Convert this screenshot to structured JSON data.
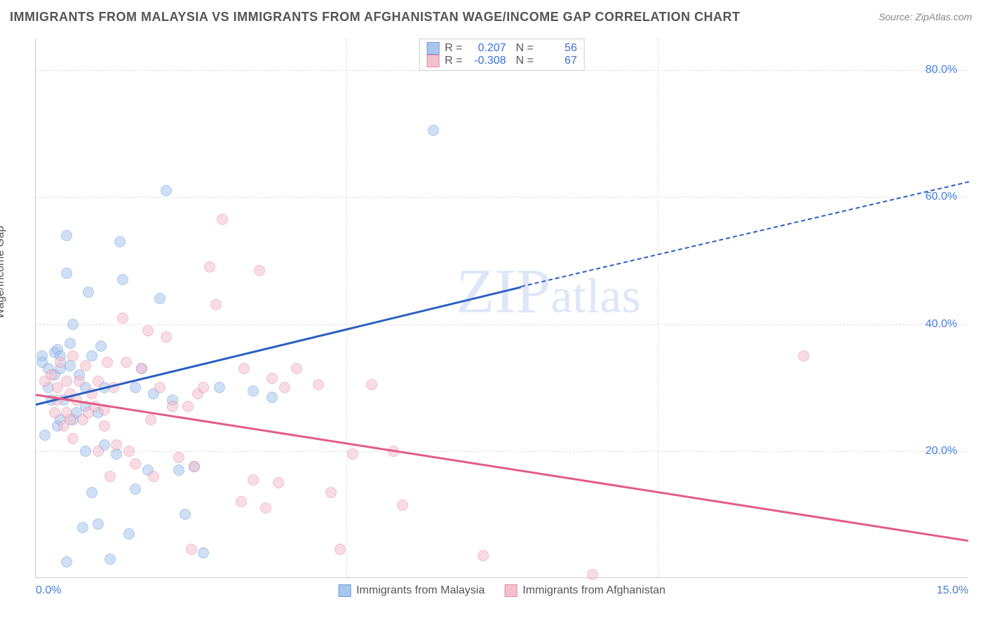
{
  "title": "IMMIGRANTS FROM MALAYSIA VS IMMIGRANTS FROM AFGHANISTAN WAGE/INCOME GAP CORRELATION CHART",
  "source": "Source: ZipAtlas.com",
  "ylabel": "Wage/Income Gap",
  "watermark": "ZIPatlas",
  "chart": {
    "type": "scatter",
    "xlim": [
      0.0,
      15.0
    ],
    "ylim": [
      0.0,
      85.0
    ],
    "yticks": [
      20.0,
      40.0,
      60.0,
      80.0
    ],
    "xticks_minor": [
      5.0,
      10.0
    ],
    "xtick_labels": [
      {
        "x": 0.0,
        "label": "0.0%"
      },
      {
        "x": 15.0,
        "label": "15.0%"
      }
    ],
    "ytick_labels": [
      "20.0%",
      "40.0%",
      "60.0%",
      "80.0%"
    ],
    "background_color": "#ffffff",
    "grid_color": "#e0e0e0",
    "series": [
      {
        "name": "Immigrants from Malaysia",
        "color_fill": "#a8c5ec",
        "color_stroke": "#6d9de0",
        "R": "0.207",
        "N": "56",
        "regression": {
          "x1": 0.0,
          "y1": 27.5,
          "x2": 7.8,
          "y2": 46.0,
          "color": "#2b5fc0",
          "solid": true
        },
        "regression_ext": {
          "x1": 7.8,
          "y1": 46.0,
          "x2": 15.0,
          "y2": 62.5,
          "color": "#2b5fc0",
          "solid": false
        },
        "points": [
          [
            0.1,
            35.0
          ],
          [
            0.1,
            34.0
          ],
          [
            0.15,
            22.5
          ],
          [
            0.2,
            30.0
          ],
          [
            0.2,
            33.0
          ],
          [
            0.25,
            28.0
          ],
          [
            0.3,
            35.5
          ],
          [
            0.3,
            32.0
          ],
          [
            0.35,
            36.0
          ],
          [
            0.35,
            24.0
          ],
          [
            0.4,
            25.0
          ],
          [
            0.4,
            33.0
          ],
          [
            0.4,
            35.0
          ],
          [
            0.45,
            28.0
          ],
          [
            0.5,
            48.0
          ],
          [
            0.5,
            54.0
          ],
          [
            0.5,
            2.5
          ],
          [
            0.55,
            33.5
          ],
          [
            0.6,
            40.0
          ],
          [
            0.6,
            25.0
          ],
          [
            0.7,
            32.0
          ],
          [
            0.75,
            8.0
          ],
          [
            0.8,
            30.0
          ],
          [
            0.8,
            20.0
          ],
          [
            0.85,
            45.0
          ],
          [
            0.9,
            35.0
          ],
          [
            0.9,
            13.5
          ],
          [
            1.0,
            26.0
          ],
          [
            1.0,
            8.5
          ],
          [
            1.1,
            30.0
          ],
          [
            1.1,
            21.0
          ],
          [
            1.2,
            3.0
          ],
          [
            1.3,
            19.5
          ],
          [
            1.35,
            53.0
          ],
          [
            1.4,
            47.0
          ],
          [
            1.5,
            7.0
          ],
          [
            1.6,
            30.0
          ],
          [
            1.6,
            14.0
          ],
          [
            1.7,
            33.0
          ],
          [
            1.8,
            17.0
          ],
          [
            1.9,
            29.0
          ],
          [
            2.0,
            44.0
          ],
          [
            2.1,
            61.0
          ],
          [
            2.2,
            28.0
          ],
          [
            2.3,
            17.0
          ],
          [
            2.4,
            10.0
          ],
          [
            2.55,
            17.5
          ],
          [
            2.7,
            4.0
          ],
          [
            2.95,
            30.0
          ],
          [
            3.5,
            29.5
          ],
          [
            3.8,
            28.5
          ],
          [
            6.4,
            70.5
          ],
          [
            1.05,
            36.5
          ],
          [
            0.55,
            37.0
          ],
          [
            0.65,
            26.0
          ],
          [
            0.8,
            27.0
          ]
        ]
      },
      {
        "name": "Immigrants from Afghanistan",
        "color_fill": "#f4c0ce",
        "color_stroke": "#e88aa5",
        "R": "-0.308",
        "N": "67",
        "regression": {
          "x1": 0.0,
          "y1": 29.0,
          "x2": 15.0,
          "y2": 6.0,
          "color": "#e25c86",
          "solid": true
        },
        "points": [
          [
            0.15,
            31.0
          ],
          [
            0.25,
            32.0
          ],
          [
            0.3,
            26.0
          ],
          [
            0.35,
            28.0
          ],
          [
            0.35,
            30.0
          ],
          [
            0.4,
            34.0
          ],
          [
            0.45,
            24.0
          ],
          [
            0.5,
            26.0
          ],
          [
            0.5,
            31.0
          ],
          [
            0.55,
            29.0
          ],
          [
            0.6,
            35.0
          ],
          [
            0.6,
            22.0
          ],
          [
            0.65,
            28.0
          ],
          [
            0.7,
            31.0
          ],
          [
            0.75,
            25.0
          ],
          [
            0.8,
            33.5
          ],
          [
            0.85,
            26.0
          ],
          [
            0.9,
            29.0
          ],
          [
            0.95,
            27.0
          ],
          [
            1.0,
            31.0
          ],
          [
            1.0,
            20.0
          ],
          [
            1.1,
            24.0
          ],
          [
            1.1,
            26.5
          ],
          [
            1.2,
            16.0
          ],
          [
            1.25,
            30.0
          ],
          [
            1.3,
            21.0
          ],
          [
            1.4,
            41.0
          ],
          [
            1.45,
            34.0
          ],
          [
            1.5,
            20.0
          ],
          [
            1.6,
            18.0
          ],
          [
            1.7,
            33.0
          ],
          [
            1.8,
            39.0
          ],
          [
            1.85,
            25.0
          ],
          [
            1.9,
            16.0
          ],
          [
            2.0,
            30.0
          ],
          [
            2.1,
            38.0
          ],
          [
            2.2,
            27.0
          ],
          [
            2.3,
            19.0
          ],
          [
            2.5,
            4.5
          ],
          [
            2.55,
            17.5
          ],
          [
            2.6,
            29.0
          ],
          [
            2.7,
            30.0
          ],
          [
            2.8,
            49.0
          ],
          [
            2.9,
            43.0
          ],
          [
            3.0,
            56.5
          ],
          [
            3.3,
            12.0
          ],
          [
            3.35,
            33.0
          ],
          [
            3.5,
            15.5
          ],
          [
            3.6,
            48.5
          ],
          [
            3.7,
            11.0
          ],
          [
            3.8,
            31.5
          ],
          [
            3.9,
            15.0
          ],
          [
            4.0,
            30.0
          ],
          [
            4.2,
            33.0
          ],
          [
            4.55,
            30.5
          ],
          [
            4.75,
            13.5
          ],
          [
            4.9,
            4.5
          ],
          [
            5.1,
            19.5
          ],
          [
            5.4,
            30.5
          ],
          [
            5.75,
            20.0
          ],
          [
            5.9,
            11.5
          ],
          [
            7.2,
            3.5
          ],
          [
            8.95,
            0.5
          ],
          [
            12.35,
            35.0
          ],
          [
            1.15,
            34.0
          ],
          [
            0.55,
            25.0
          ],
          [
            2.45,
            27.0
          ]
        ]
      }
    ]
  }
}
